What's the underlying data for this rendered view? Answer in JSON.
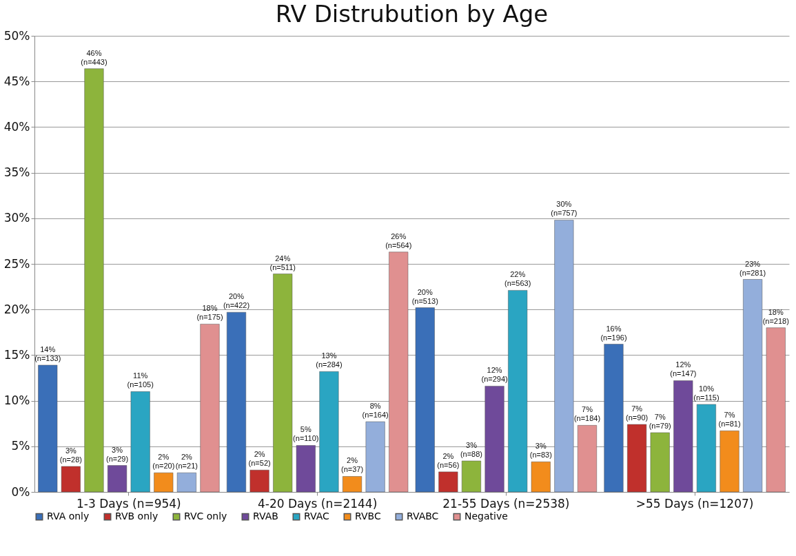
{
  "chart_data": {
    "type": "bar",
    "title": "RV Distrubution by Age",
    "categories": [
      "1-3 Days (n=954)",
      "4-20 Days (n=2144)",
      "21-55 Days (n=2538)",
      ">55 Days (n=1207)"
    ],
    "ylim": [
      0,
      50
    ],
    "yticks": [
      {
        "value": 0,
        "label": "0%"
      },
      {
        "value": 5,
        "label": "5%"
      },
      {
        "value": 10,
        "label": "10%"
      },
      {
        "value": 15,
        "label": "15%"
      },
      {
        "value": 20,
        "label": "20%"
      },
      {
        "value": 25,
        "label": "25%"
      },
      {
        "value": 30,
        "label": "30%"
      },
      {
        "value": 35,
        "label": "35%"
      },
      {
        "value": 40,
        "label": "40%"
      },
      {
        "value": 45,
        "label": "45%"
      },
      {
        "value": 50,
        "label": "50%"
      }
    ],
    "grid": "y",
    "legend": "bottom",
    "series": [
      {
        "name": "RVA only",
        "color": "#3a6fb8",
        "values": [
          13.9,
          19.7,
          20.2,
          16.2
        ],
        "value_labels": [
          "14%\n(n=133)",
          "20%\n(n=422)",
          "20%\n(n=513)",
          "16%\n(n=196)"
        ]
      },
      {
        "name": "RVB only",
        "color": "#c0302c",
        "values": [
          2.8,
          2.4,
          2.2,
          7.4
        ],
        "value_labels": [
          "3%\n(n=28)",
          "2%\n(n=52)",
          "2%\n(n=56)",
          "7%\n(n=90)"
        ]
      },
      {
        "name": "RVC only",
        "color": "#8db43c",
        "values": [
          46.4,
          23.9,
          3.4,
          6.5
        ],
        "value_labels": [
          "46%\n(n=443)",
          "24%\n(n=511)",
          "3%\n(n=88)",
          "7%\n(n=79)"
        ]
      },
      {
        "name": "RVAB",
        "color": "#6f4a9a",
        "values": [
          2.9,
          5.1,
          11.6,
          12.2
        ],
        "value_labels": [
          "3%\n(n=29)",
          "5%\n(n=110)",
          "12%\n(n=294)",
          "12%\n(n=147)"
        ]
      },
      {
        "name": "RVAC",
        "color": "#2aa5c2",
        "values": [
          11.0,
          13.2,
          22.1,
          9.6
        ],
        "value_labels": [
          "11%\n(n=105)",
          "13%\n(n=284)",
          "22%\n(n=563)",
          "10%\n(n=115)"
        ]
      },
      {
        "name": "RVBC",
        "color": "#f28c1c",
        "values": [
          2.1,
          1.7,
          3.3,
          6.7
        ],
        "value_labels": [
          "2%\n(n=20)",
          "2%\n(n=37)",
          "3%\n(n=83)",
          "7%\n(n=81)"
        ]
      },
      {
        "name": "RVABC",
        "color": "#93aedb",
        "values": [
          2.1,
          7.7,
          29.8,
          23.3
        ],
        "value_labels": [
          "2%\n(n=21)",
          "8%\n(n=164)",
          "30%\n(n=757)",
          "23%\n(n=281)"
        ]
      },
      {
        "name": "Negative",
        "color": "#e09090",
        "values": [
          18.4,
          26.3,
          7.3,
          18.0
        ],
        "value_labels": [
          "18%\n(n=175)",
          "26%\n(n=564)",
          "7%\n(n=184)",
          "18%\n(n=218)"
        ]
      }
    ]
  }
}
